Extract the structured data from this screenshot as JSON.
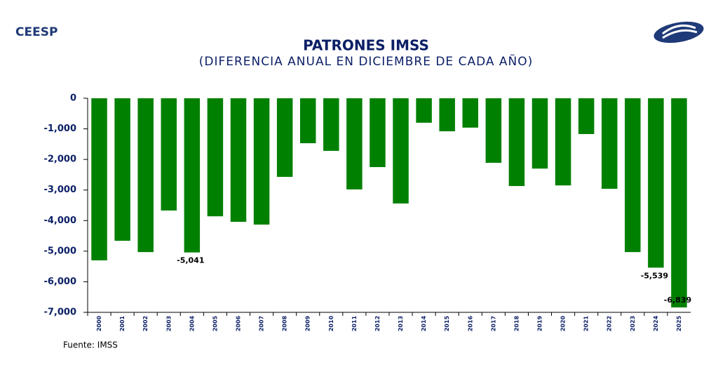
{
  "brand": "CEESP",
  "chart_data": {
    "type": "bar",
    "title": "PATRONES IMSS",
    "subtitle": "(DIFERENCIA ANUAL EN DICIEMBRE DE CADA AÑO)",
    "categories": [
      "2000",
      "2001",
      "2002",
      "2003",
      "2004",
      "2005",
      "2006",
      "2007",
      "2008",
      "2009",
      "2010",
      "2011",
      "2012",
      "2013",
      "2014",
      "2015",
      "2016",
      "2017",
      "2018",
      "2019",
      "2020",
      "2021",
      "2022",
      "2023",
      "2024",
      "2025"
    ],
    "values": [
      -5300,
      -4660,
      -5030,
      -3670,
      -5041,
      -3860,
      -4040,
      -4130,
      -2570,
      -1470,
      -1720,
      -2980,
      -2250,
      -3440,
      -800,
      -1080,
      -960,
      -2110,
      -2870,
      -2300,
      -2850,
      -1170,
      -2960,
      -5030,
      -5539,
      -6839
    ],
    "value_labels": [
      null,
      null,
      null,
      null,
      "-5,041",
      null,
      null,
      null,
      null,
      null,
      null,
      null,
      null,
      null,
      null,
      null,
      null,
      null,
      null,
      null,
      null,
      null,
      null,
      null,
      "-5,539",
      "-6,839"
    ],
    "color": "#008000",
    "ylim": [
      -7000,
      0
    ],
    "yticks": [
      0,
      {
        "value": -1000,
        "label": "-1,000"
      },
      {
        "value": -2000,
        "label": "-2,000"
      },
      {
        "value": -3000,
        "label": "-3,000"
      },
      {
        "value": -4000,
        "label": "-4,000"
      },
      {
        "value": -5000,
        "label": "-5,000"
      },
      {
        "value": -6000,
        "label": "-6,000"
      },
      {
        "value": -7000,
        "label": "-7,000"
      }
    ],
    "source": "Fuente: IMSS"
  }
}
